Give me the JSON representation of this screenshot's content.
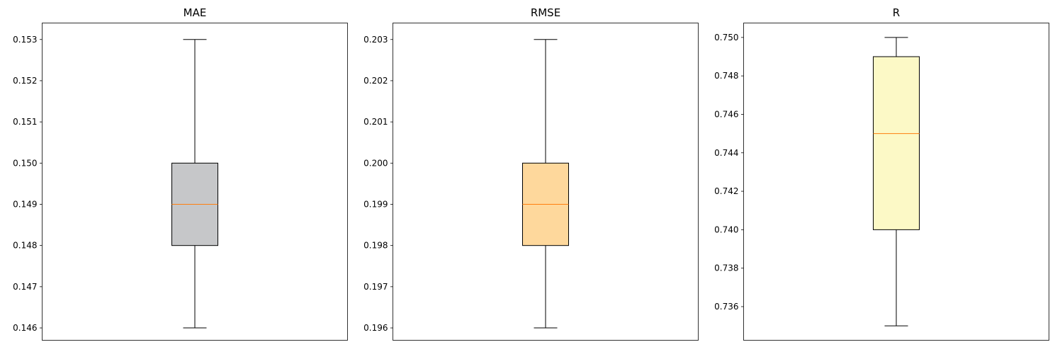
{
  "chart_data": [
    {
      "type": "box",
      "title": "MAE",
      "ylim": [
        0.1457,
        0.1534
      ],
      "yticks": [
        0.146,
        0.147,
        0.148,
        0.149,
        0.15,
        0.151,
        0.152,
        0.153
      ],
      "ytick_decimals": 3,
      "box": {
        "whisker_low": 0.146,
        "q1": 0.148,
        "median": 0.149,
        "q3": 0.15,
        "whisker_high": 0.153
      },
      "fill": "#c6c7c9",
      "median_color": "#ff7f0e",
      "xticks": false,
      "grid": false
    },
    {
      "type": "box",
      "title": "RMSE",
      "ylim": [
        0.1957,
        0.2034
      ],
      "yticks": [
        0.196,
        0.197,
        0.198,
        0.199,
        0.2,
        0.201,
        0.202,
        0.203
      ],
      "ytick_decimals": 3,
      "box": {
        "whisker_low": 0.196,
        "q1": 0.198,
        "median": 0.199,
        "q3": 0.2,
        "whisker_high": 0.203
      },
      "fill": "#fed89c",
      "median_color": "#ff7f0e",
      "xticks": false,
      "grid": false
    },
    {
      "type": "box",
      "title": "R",
      "ylim": [
        0.73425,
        0.75075
      ],
      "yticks": [
        0.736,
        0.738,
        0.74,
        0.742,
        0.744,
        0.746,
        0.748,
        0.75
      ],
      "ytick_decimals": 3,
      "box": {
        "whisker_low": 0.735,
        "q1": 0.74,
        "median": 0.745,
        "q3": 0.749,
        "whisker_high": 0.75
      },
      "fill": "#fcf9c6",
      "median_color": "#ff7f0e",
      "xticks": false,
      "grid": false
    }
  ]
}
